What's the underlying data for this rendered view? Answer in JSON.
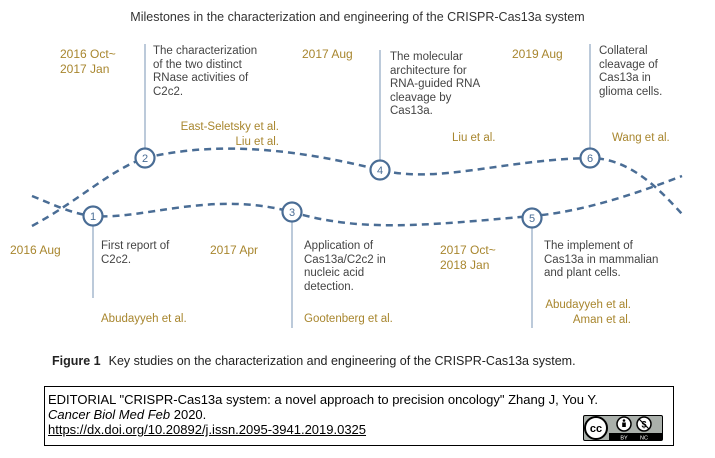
{
  "title": "Milestones in the characterization and engineering of the CRISPR-Cas13a system",
  "milestones": [
    {
      "num": "1",
      "date_lines": [
        "2016 Aug"
      ],
      "desc_lines": [
        "First report of",
        "C2c2."
      ],
      "author_lines": [
        "Abudayyeh et al."
      ]
    },
    {
      "num": "2",
      "date_lines": [
        "2016 Oct~",
        "2017 Jan"
      ],
      "desc_lines": [
        "The characterization",
        "of the two distinct",
        "RNase activities of",
        "C2c2."
      ],
      "author_lines": [
        "East-Seletsky et al.",
        "Liu et al."
      ]
    },
    {
      "num": "3",
      "date_lines": [
        "2017 Apr"
      ],
      "desc_lines": [
        "Application of",
        "Cas13a/C2c2 in",
        "nucleic acid",
        "detection."
      ],
      "author_lines": [
        "Gootenberg et al."
      ]
    },
    {
      "num": "4",
      "date_lines": [
        "2017 Aug"
      ],
      "desc_lines": [
        "The molecular",
        "architecture for",
        "RNA-guided RNA",
        "cleavage by",
        "Cas13a."
      ],
      "author_lines": [
        "Liu et al."
      ]
    },
    {
      "num": "5",
      "date_lines": [
        "2017 Oct~",
        "2018 Jan"
      ],
      "desc_lines": [
        "The implement of",
        "Cas13a in mammalian",
        "and plant cells."
      ],
      "author_lines": [
        "Abudayyeh et al.",
        "Aman et al."
      ]
    },
    {
      "num": "6",
      "date_lines": [
        "2019 Aug"
      ],
      "desc_lines": [
        "Collateral",
        "cleavage of",
        "Cas13a in",
        "glioma cells."
      ],
      "author_lines": [
        "Wang et al."
      ]
    }
  ],
  "caption": {
    "label": "Figure 1",
    "text": "Key studies on the characterization and engineering of the CRISPR-Cas13a system."
  },
  "editorial": {
    "line1": "EDITORIAL \"CRISPR-Cas13a system: a novel approach to precision oncology\"  Zhang J, You Y.",
    "journal": "Cancer Biol Med Feb",
    "year": " 2020.",
    "doi": "https://dx.doi.org/10.20892/j.issn.2095-3941.2019.0325"
  },
  "license": {
    "cc": "cc",
    "by": "BY",
    "nc": "NC"
  },
  "colors": {
    "curve": "#4a6d95",
    "accent": "#a8862e",
    "line": "#8fa6c2"
  }
}
